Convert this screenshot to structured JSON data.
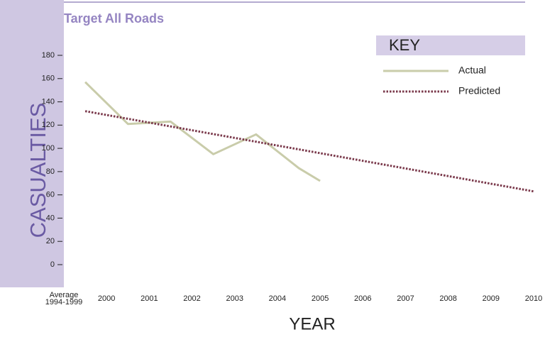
{
  "chart_data": {
    "type": "line",
    "title": "Target All Roads",
    "ylabel": "CASUALTIES",
    "xlabel": "YEAR",
    "legend_title": "KEY",
    "legend": "upper right",
    "xlim": [
      1999,
      2010
    ],
    "xticks": [
      {
        "value": 1999,
        "label": "Average\n1994-1999"
      },
      2000,
      2001,
      2002,
      2003,
      2004,
      2005,
      2006,
      2007,
      2008,
      2009,
      2010
    ],
    "ylim": [
      0,
      180
    ],
    "yticks": [
      0,
      20,
      40,
      60,
      80,
      100,
      120,
      140,
      160,
      180
    ],
    "series": [
      {
        "name": "Actual",
        "color": "#c9ccaa",
        "style": "solid",
        "x": [
          1999.5,
          2000.5,
          2001.5,
          2002.5,
          2003.5,
          2004.5,
          2005
        ],
        "values": [
          157,
          121,
          123,
          95,
          112,
          83,
          72
        ]
      },
      {
        "name": "Predicted",
        "color": "#7b3a4c",
        "style": "dotted",
        "x": [
          1999.5,
          2010
        ],
        "values": [
          132,
          63
        ]
      }
    ]
  }
}
